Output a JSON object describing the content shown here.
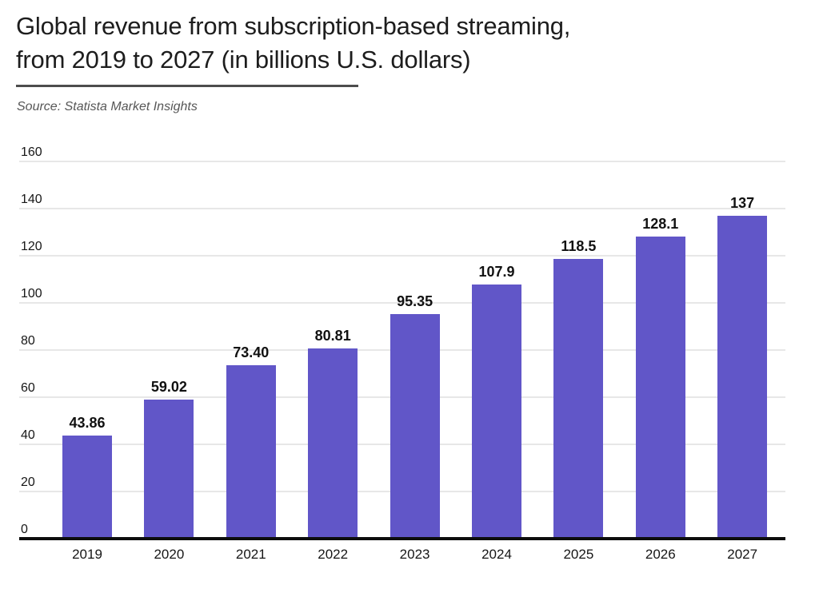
{
  "header": {
    "title_line1": "Global revenue from subscription-based streaming,",
    "title_line2": "from 2019 to 2027 (in billions U.S. dollars)",
    "source": "Source: Statista Market Insights"
  },
  "chart_data": {
    "type": "bar",
    "title": "Global revenue from subscription-based streaming, from 2019 to 2027 (in billions U.S. dollars)",
    "source": "Source: Statista Market Insights",
    "categories": [
      "2019",
      "2020",
      "2021",
      "2022",
      "2023",
      "2024",
      "2025",
      "2026",
      "2027"
    ],
    "values": [
      43.86,
      59.02,
      73.4,
      80.81,
      95.35,
      107.9,
      118.5,
      128.1,
      137
    ],
    "value_labels": [
      "43.86",
      "59.02",
      "73.40",
      "80.81",
      "95.35",
      "107.9",
      "118.5",
      "128.1",
      "137"
    ],
    "xlabel": "",
    "ylabel": "",
    "ylim": [
      0,
      160
    ],
    "yticks": [
      0,
      20,
      40,
      60,
      80,
      100,
      120,
      140,
      160
    ],
    "grid": true,
    "legend": false,
    "bar_color": "#6156c8",
    "axis_color": "#0d0d0d",
    "gridline_color": "#e7e7e7"
  }
}
